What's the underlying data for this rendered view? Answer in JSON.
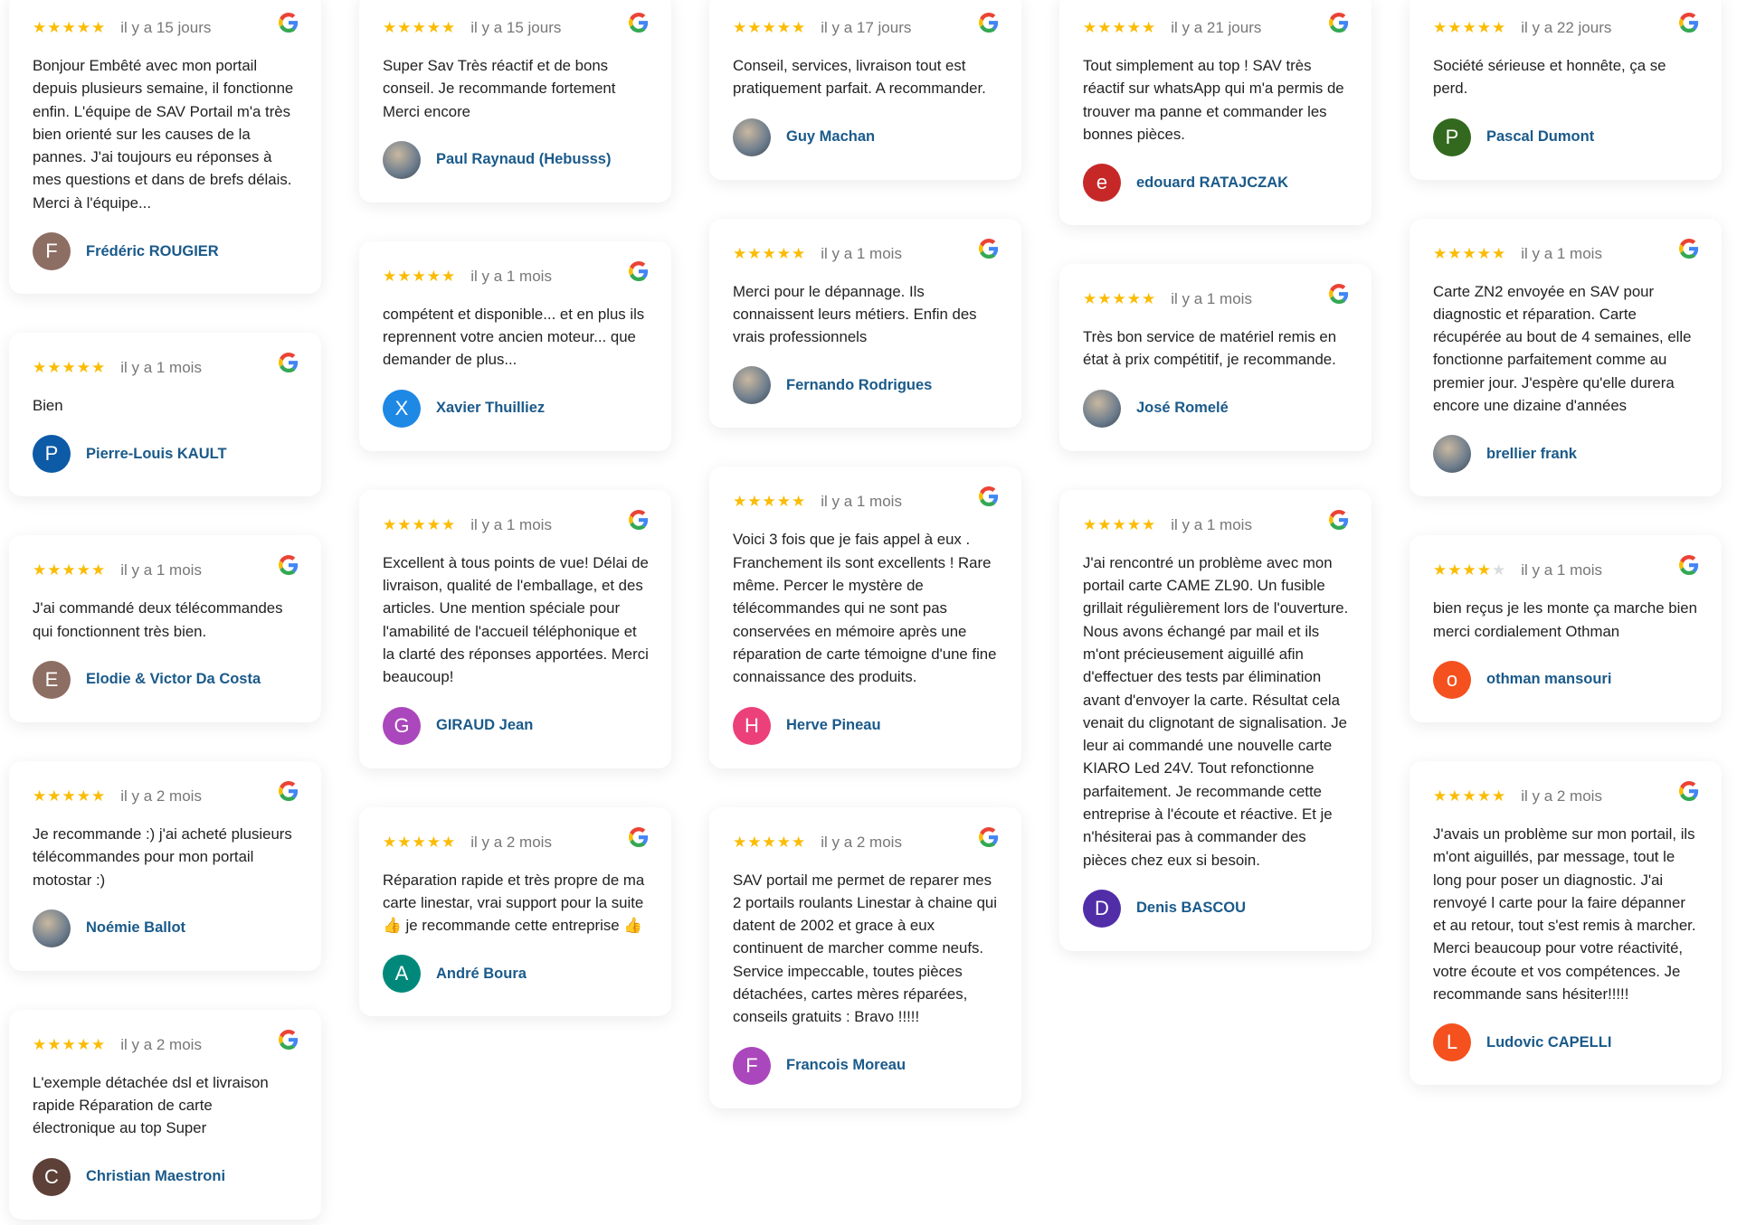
{
  "colors": {
    "star": "#fbbc04",
    "name": "#1a5a8a"
  },
  "columns": [
    [
      {
        "stars": 5,
        "time": "il y a 15 jours",
        "text": "Bonjour Embêté avec mon portail depuis plusieurs semaine, il fonctionne enfin. L'équipe de SAV Portail m'a très bien orienté sur les causes de la pannes. J'ai toujours eu réponses à mes questions et dans de brefs délais. Merci à l'équipe...",
        "name": "Frédéric ROUGIER",
        "initial": "F",
        "color": "#8d6e63"
      },
      {
        "stars": 5,
        "time": "il y a 1 mois",
        "text": "Bien",
        "name": "Pierre-Louis KAULT",
        "initial": "P",
        "color": "#0d5aa7"
      },
      {
        "stars": 5,
        "time": "il y a 1 mois",
        "text": "J'ai commandé deux télécommandes qui fonctionnent très bien.",
        "name": "Elodie & Victor Da Costa",
        "initial": "E",
        "color": "#8d6e63"
      },
      {
        "stars": 5,
        "time": "il y a 2 mois",
        "text": "Je recommande :) j'ai acheté plusieurs télécommandes pour mon portail motostar :)",
        "name": "Noémie Ballot",
        "initial": "",
        "color": "photo"
      },
      {
        "stars": 5,
        "time": "il y a 2 mois",
        "text": "L'exemple détachée dsl et livraison rapide Réparation de carte électronique au top Super",
        "name": "Christian Maestroni",
        "initial": "C",
        "color": "#5d4037"
      }
    ],
    [
      {
        "stars": 5,
        "time": "il y a 15 jours",
        "text": "Super Sav Très réactif et de bons conseil. Je recommande fortement Merci encore",
        "name": "Paul Raynaud (Hebusss)",
        "initial": "",
        "color": "photo"
      },
      {
        "stars": 5,
        "time": "il y a 1 mois",
        "text": "compétent et disponible... et en plus ils reprennent votre ancien moteur... que demander de plus...",
        "name": "Xavier Thuilliez",
        "initial": "X",
        "color": "#1e88e5"
      },
      {
        "stars": 5,
        "time": "il y a 1 mois",
        "text": "Excellent à tous points de vue! Délai de livraison, qualité de l'emballage, et des articles. Une mention spéciale pour l'amabilité de l'accueil téléphonique et la clarté des réponses apportées. Merci beaucoup!",
        "name": "GIRAUD Jean",
        "initial": "G",
        "color": "#ab47bc"
      },
      {
        "stars": 5,
        "time": "il y a 2 mois",
        "text": "Réparation rapide et très propre de ma carte linestar, vrai support pour la suite 👍 je recommande cette entreprise 👍",
        "name": "André Boura",
        "initial": "A",
        "color": "#00897b"
      }
    ],
    [
      {
        "stars": 5,
        "time": "il y a 17 jours",
        "text": "Conseil, services, livraison tout est pratiquement parfait. A recommander.",
        "name": "Guy Machan",
        "initial": "",
        "color": "photo"
      },
      {
        "stars": 5,
        "time": "il y a 1 mois",
        "text": "Merci pour le dépannage. Ils connaissent leurs métiers. Enfin des vrais professionnels",
        "name": "Fernando Rodrigues",
        "initial": "",
        "color": "photo"
      },
      {
        "stars": 5,
        "time": "il y a 1 mois",
        "text": "Voici 3 fois que je fais appel à eux . Franchement ils sont excellents ! Rare même. Percer le mystère de télécommandes qui ne sont pas conservées en mémoire après une réparation de carte témoigne d'une fine connaissance des produits.",
        "name": "Herve Pineau",
        "initial": "H",
        "color": "#ec407a"
      },
      {
        "stars": 5,
        "time": "il y a 2 mois",
        "text": "SAV portail me permet de reparer mes 2 portails roulants Linestar à chaine qui datent de 2002 et grace à eux continuent de marcher comme neufs. Service impeccable, toutes pièces détachées, cartes mères réparées, conseils gratuits : Bravo !!!!!",
        "name": "Francois Moreau",
        "initial": "F",
        "color": "#ab47bc"
      }
    ],
    [
      {
        "stars": 5,
        "time": "il y a 21 jours",
        "text": "Tout simplement au top ! SAV très réactif sur whatsApp qui m'a permis de trouver ma panne et commander les bonnes pièces.",
        "name": "edouard RATAJCZAK",
        "initial": "e",
        "color": "#c62828"
      },
      {
        "stars": 5,
        "time": "il y a 1 mois",
        "text": "Très bon service de matériel remis en état à prix compétitif, je recommande.",
        "name": "José Romelé",
        "initial": "",
        "color": "photo"
      },
      {
        "stars": 5,
        "time": "il y a 1 mois",
        "text": "J'ai rencontré un problème avec mon portail carte CAME ZL90. Un fusible grillait régulièrement lors de l'ouverture. Nous avons échangé par mail et ils m'ont précieusement aiguillé afin d'effectuer des tests par élimination avant d'envoyer la carte. Résultat cela venait du clignotant de signalisation. Je leur ai commandé une nouvelle carte KIARO Led 24V. Tout refonctionne parfaitement. Je recommande cette entreprise à l'écoute et réactive. Et je n'hésiterai pas à commander des pièces chez eux si besoin.",
        "name": "Denis BASCOU",
        "initial": "D",
        "color": "#512da8"
      }
    ],
    [
      {
        "stars": 5,
        "time": "il y a 22 jours",
        "text": "Société sérieuse et honnête, ça se perd.",
        "name": "Pascal Dumont",
        "initial": "P",
        "color": "#33691e"
      },
      {
        "stars": 5,
        "time": "il y a 1 mois",
        "text": "Carte ZN2 envoyée en SAV pour diagnostic et réparation. Carte récupérée au bout de 4 semaines, elle fonctionne parfaitement comme au premier jour. J'espère qu'elle durera encore une dizaine d'années",
        "name": "brellier frank",
        "initial": "",
        "color": "photo"
      },
      {
        "stars": 4,
        "time": "il y a 1 mois",
        "text": "bien reçus je les monte ça marche bien merci cordialement Othman",
        "name": "othman mansouri",
        "initial": "o",
        "color": "#f4511e"
      },
      {
        "stars": 5,
        "time": "il y a 2 mois",
        "text": "J'avais un problème sur mon portail, ils m'ont aiguillés, par message, tout le long pour poser un diagnostic. J'ai renvoyé l carte pour la faire dépanner et au retour, tout s'est remis à marcher. Merci beaucoup pour votre réactivité, votre écoute et vos compétences. Je recommande sans hésiter!!!!!",
        "name": "Ludovic CAPELLI",
        "initial": "L",
        "color": "#f4511e"
      }
    ]
  ]
}
